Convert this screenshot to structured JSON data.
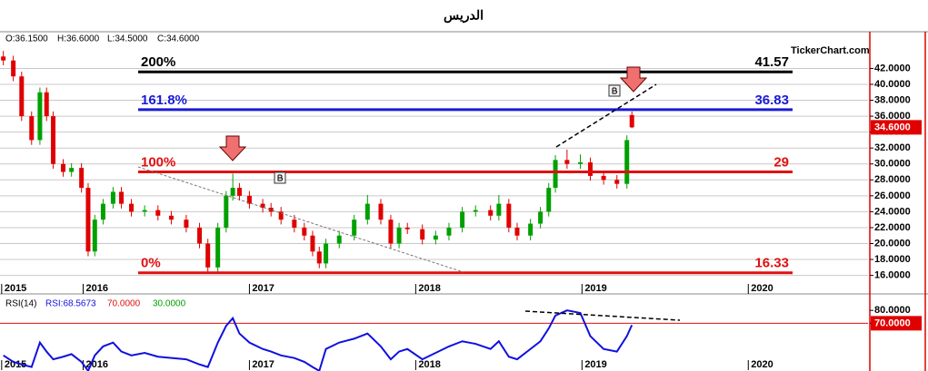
{
  "title": "الدريس",
  "watermark": "TickerChart.com",
  "info": [
    "O:36.1500",
    "H:36.6000",
    "L:34.5000",
    "C:34.6000"
  ],
  "chart_data": [
    {
      "type": "candlestick",
      "x": [
        2015.52,
        2015.58,
        2015.63,
        2015.69,
        2015.74,
        2015.78,
        2015.82,
        2015.88,
        2015.93,
        2015.99,
        2016.03,
        2016.07,
        2016.12,
        2016.18,
        2016.23,
        2016.29,
        2016.37,
        2016.45,
        2016.53,
        2016.62,
        2016.7,
        2016.75,
        2016.81,
        2016.86,
        2016.9,
        2016.94,
        2017.0,
        2017.08,
        2017.13,
        2017.19,
        2017.27,
        2017.33,
        2017.38,
        2017.42,
        2017.46,
        2017.54,
        2017.63,
        2017.71,
        2017.79,
        2017.85,
        2017.9,
        2017.95,
        2018.04,
        2018.12,
        2018.2,
        2018.28,
        2018.36,
        2018.45,
        2018.5,
        2018.56,
        2018.61,
        2018.69,
        2018.75,
        2018.8,
        2018.84,
        2018.91,
        2018.99,
        2019.05,
        2019.13,
        2019.21,
        2019.27,
        2019.3
      ],
      "open": [
        43.5,
        43,
        41,
        36,
        33,
        39,
        36,
        30,
        29,
        29.5,
        27,
        19,
        23,
        25,
        26.5,
        25,
        24,
        24.2,
        23.5,
        23,
        22,
        20,
        17,
        22,
        26,
        27,
        26,
        25,
        24.5,
        24,
        23,
        22,
        21,
        19,
        17.5,
        20,
        21,
        23,
        25,
        23,
        20,
        22,
        21.8,
        20.5,
        21,
        22,
        24,
        24.2,
        23.5,
        25,
        22,
        21,
        22.5,
        24,
        27,
        30.5,
        30,
        30.2,
        28.5,
        28,
        27.5,
        36.15
      ],
      "high": [
        44.2,
        43.6,
        41.6,
        36.6,
        39.6,
        39.6,
        36.6,
        30.6,
        30.1,
        30.1,
        27.6,
        23.6,
        25.6,
        27.1,
        27.1,
        25.6,
        24.8,
        24.8,
        24.1,
        23.6,
        22.6,
        20.6,
        22.6,
        26.6,
        28.8,
        27.6,
        26.6,
        25.6,
        25.1,
        24.6,
        23.6,
        22.6,
        21.6,
        19.6,
        20.6,
        21.6,
        23.6,
        26.1,
        25.6,
        23.6,
        22.6,
        22.6,
        22.4,
        21.6,
        22.6,
        24.6,
        24.8,
        24.8,
        26.1,
        25.6,
        22.6,
        23.1,
        24.6,
        27.6,
        31.1,
        31.8,
        31.2,
        30.8,
        29.1,
        28.6,
        33.6,
        36.6
      ],
      "low": [
        42.4,
        40.4,
        35.4,
        32.4,
        32.4,
        35.4,
        29.4,
        28.4,
        28.4,
        26.4,
        18.4,
        18.4,
        22.4,
        24.4,
        24.4,
        23.4,
        23.4,
        22.9,
        22.4,
        21.4,
        19.4,
        16.4,
        16.4,
        21.4,
        25.4,
        25.4,
        24.4,
        23.9,
        23.4,
        22.4,
        21.4,
        20.4,
        18.4,
        16.9,
        16.9,
        19.4,
        20.4,
        22.4,
        22.4,
        19.4,
        19.4,
        21.2,
        19.9,
        19.9,
        20.4,
        21.4,
        23.4,
        22.9,
        22.9,
        21.4,
        20.4,
        20.4,
        21.9,
        23.4,
        26.4,
        29.4,
        29.4,
        27.9,
        27.4,
        26.9,
        26.9,
        34.5
      ],
      "close": [
        43,
        41,
        36,
        33,
        39,
        36,
        30,
        29,
        29.5,
        27,
        19,
        23,
        25,
        26.5,
        25,
        24,
        24.2,
        23.5,
        23,
        22,
        20,
        17,
        22,
        26,
        27,
        26,
        25,
        24.5,
        24,
        23,
        22,
        21,
        19,
        17.5,
        20,
        21,
        23,
        25,
        23,
        20,
        22,
        21.8,
        20.5,
        21,
        22,
        24,
        24.2,
        23.5,
        25,
        22,
        21,
        22.5,
        24,
        27,
        30.5,
        30,
        30.2,
        28.5,
        28,
        27.5,
        33,
        34.6
      ],
      "up_color": "#00a000",
      "down_color": "#e00000",
      "levels": [
        {
          "name": "200%",
          "value": 41.57,
          "color": "#000000"
        },
        {
          "name": "161.8%",
          "value": 36.83,
          "color": "#1a1ad8"
        },
        {
          "name": "100%",
          "value": 29,
          "color": "#e01010"
        },
        {
          "name": "0%",
          "value": 16.33,
          "color": "#e01010"
        }
      ],
      "last_price": {
        "value": 34.6,
        "label": "34.6000"
      },
      "xlim": [
        2015.5,
        2020.72
      ],
      "xticks": [
        {
          "value": 2015.51,
          "label": "2015"
        },
        2016,
        2017,
        2018,
        2019,
        2020
      ],
      "ylim": [
        14.7,
        44.9
      ],
      "yticks": [
        {
          "value": 16,
          "label": "16.0000"
        },
        {
          "value": 18,
          "label": "18.0000"
        },
        {
          "value": 20,
          "label": "20.0000"
        },
        {
          "value": 22,
          "label": "22.0000"
        },
        {
          "value": 24,
          "label": "24.0000"
        },
        {
          "value": 26,
          "label": "26.0000"
        },
        {
          "value": 28,
          "label": "28.0000"
        },
        {
          "value": 30,
          "label": "30.0000"
        },
        {
          "value": 32,
          "label": "32.0000"
        },
        {
          "value": 34,
          "label": "34.0000"
        },
        {
          "value": 36,
          "label": "36.0000"
        },
        {
          "value": 38,
          "label": "38.0000"
        },
        {
          "value": 40,
          "label": "40.0000"
        },
        {
          "value": 42,
          "label": "42.0000"
        }
      ],
      "grid": true
    },
    {
      "type": "line",
      "title": "RSI(14)",
      "x": [
        2015.52,
        2015.58,
        2015.63,
        2015.69,
        2015.74,
        2015.78,
        2015.82,
        2015.88,
        2015.93,
        2015.99,
        2016.03,
        2016.07,
        2016.12,
        2016.18,
        2016.23,
        2016.29,
        2016.37,
        2016.45,
        2016.53,
        2016.62,
        2016.7,
        2016.75,
        2016.81,
        2016.86,
        2016.9,
        2016.94,
        2017.0,
        2017.08,
        2017.13,
        2017.19,
        2017.27,
        2017.33,
        2017.38,
        2017.42,
        2017.46,
        2017.54,
        2017.63,
        2017.71,
        2017.79,
        2017.85,
        2017.9,
        2017.95,
        2018.04,
        2018.12,
        2018.2,
        2018.28,
        2018.36,
        2018.45,
        2018.5,
        2018.56,
        2018.61,
        2018.69,
        2018.75,
        2018.8,
        2018.84,
        2018.91,
        2018.99,
        2019.05,
        2019.13,
        2019.21,
        2019.27,
        2019.3
      ],
      "series": [
        {
          "name": "RSI:68.5673",
          "color": "#1010e0",
          "values": [
            45,
            40,
            38,
            36,
            55,
            48,
            42,
            44,
            46,
            40,
            33,
            45,
            52,
            55,
            48,
            45,
            47,
            44,
            43,
            42,
            38,
            36,
            55,
            68,
            74,
            62,
            55,
            50,
            48,
            45,
            43,
            40,
            36,
            33,
            50,
            55,
            58,
            62,
            52,
            42,
            48,
            50,
            42,
            47,
            52,
            56,
            54,
            50,
            56,
            44,
            42,
            50,
            56,
            66,
            76,
            80,
            78,
            60,
            50,
            48,
            60,
            68.57
          ]
        }
      ],
      "levels": [
        {
          "name": "70.0000",
          "value": 70,
          "color": "#e01010"
        },
        {
          "name": "30.0000",
          "value": 30,
          "color": "#00a000"
        }
      ],
      "xlim": [
        2015.5,
        2020.72
      ],
      "xticks": [
        {
          "value": 2015.51,
          "label": "2015"
        },
        2016,
        2017,
        2018,
        2019,
        2020
      ],
      "ylim": [
        32.9,
        90.7
      ],
      "yticks": [
        {
          "value": 80,
          "label": "80.0000"
        },
        {
          "value": 70,
          "label": "70.0000"
        }
      ]
    }
  ]
}
